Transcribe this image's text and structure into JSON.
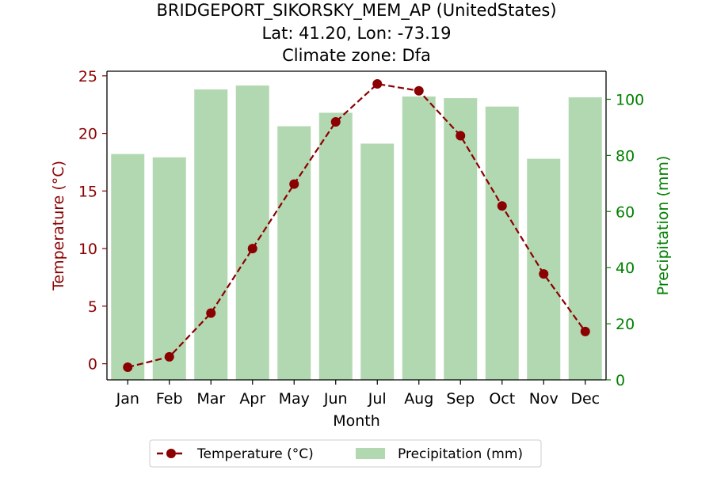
{
  "chart_data": {
    "type": "bar+line",
    "title_lines": [
      "BRIDGEPORT_SIKORSKY_MEM_AP (UnitedStates)",
      "Lat: 41.20, Lon: -73.19",
      "Climate zone: Dfa"
    ],
    "xlabel": "Month",
    "ylabel_left": "Temperature (°C)",
    "ylabel_right": "Precipitation (mm)",
    "categories": [
      "Jan",
      "Feb",
      "Mar",
      "Apr",
      "May",
      "Jun",
      "Jul",
      "Aug",
      "Sep",
      "Oct",
      "Nov",
      "Dec"
    ],
    "temperature": {
      "name": "Temperature (°C)",
      "values": [
        -0.3,
        0.6,
        4.4,
        10.0,
        15.6,
        21.0,
        24.3,
        23.7,
        19.8,
        13.7,
        7.8,
        2.8
      ],
      "color": "#8b0000",
      "axis_color": "#8b0000"
    },
    "precipitation": {
      "name": "Precipitation (mm)",
      "values": [
        80.5,
        79.3,
        103.5,
        104.9,
        90.4,
        95.2,
        84.2,
        101.0,
        100.4,
        97.4,
        78.8,
        100.7
      ],
      "color": "#b2d8b2",
      "axis_color": "#008000"
    },
    "ylim_left": [
      -1.4,
      25.4
    ],
    "ylim_right": [
      0,
      110
    ],
    "yticks_left": [
      0,
      5,
      10,
      15,
      20,
      25
    ],
    "yticks_right": [
      0,
      20,
      40,
      60,
      80,
      100
    ],
    "legend_placement": "bottom-center",
    "grid": false
  }
}
